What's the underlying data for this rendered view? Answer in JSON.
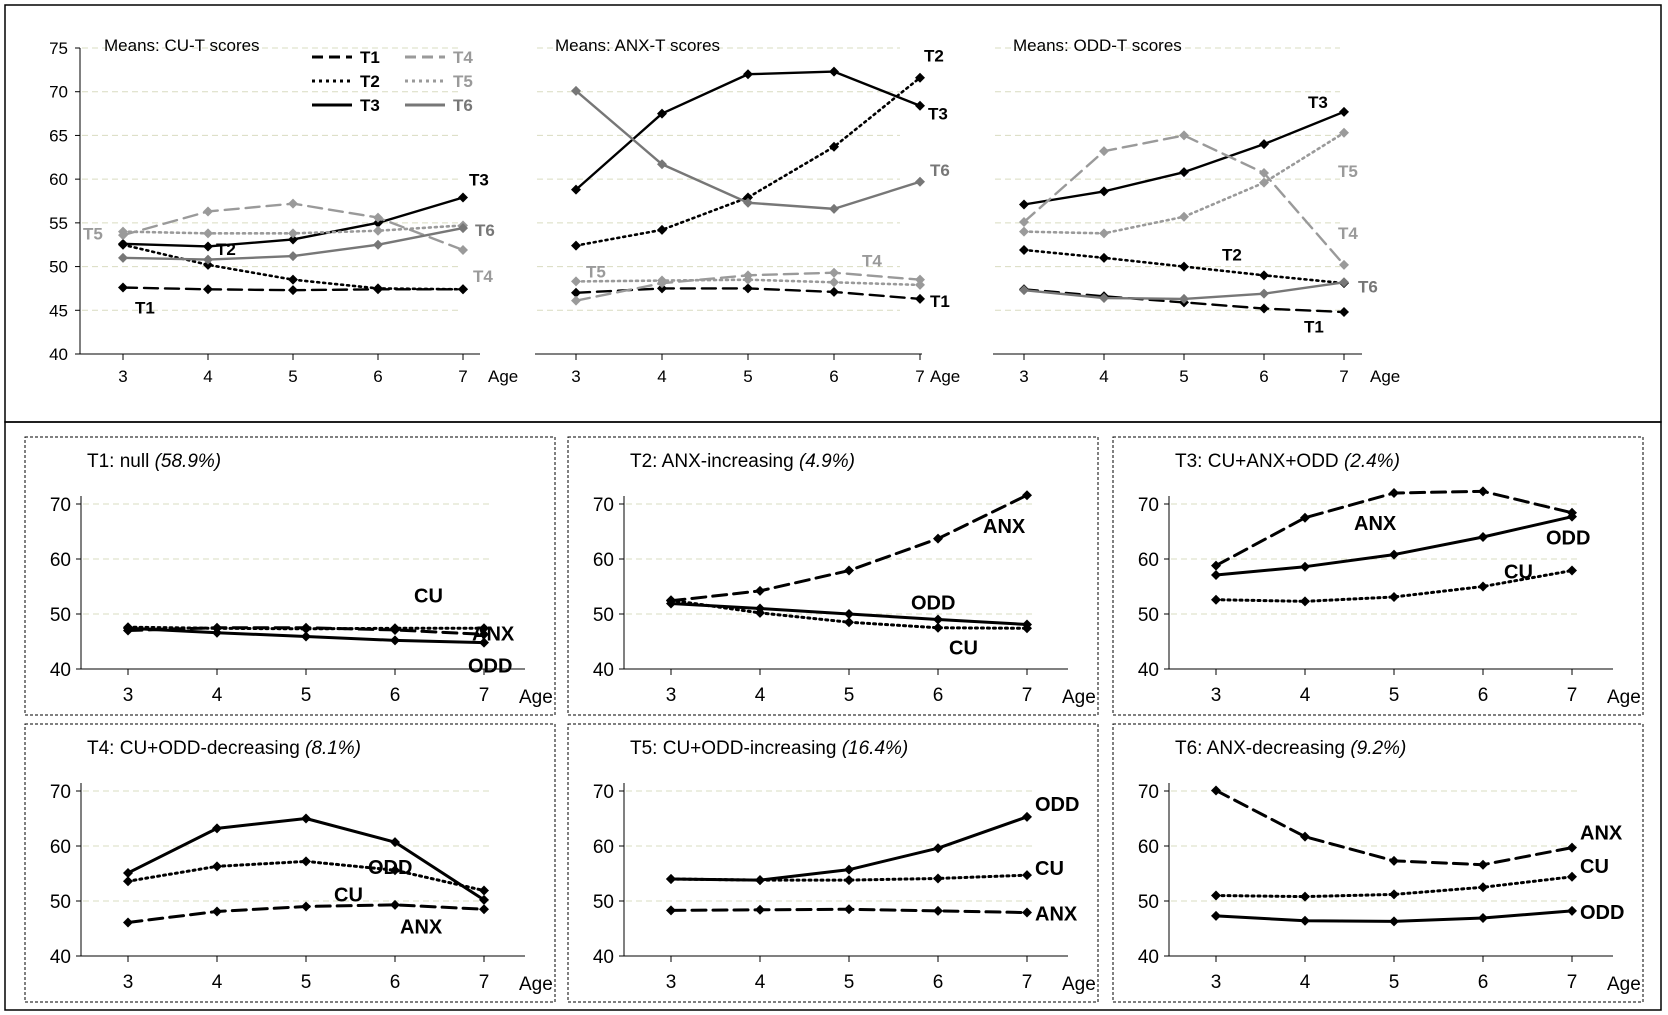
{
  "axis_label": "Age",
  "legend": [
    {
      "label": "T1",
      "style": "dash",
      "color": "#000000"
    },
    {
      "label": "T2",
      "style": "dot",
      "color": "#000000"
    },
    {
      "label": "T3",
      "style": "solid",
      "color": "#000000"
    },
    {
      "label": "T4",
      "style": "dash",
      "color": "#9a9a9a"
    },
    {
      "label": "T5",
      "style": "dot",
      "color": "#9a9a9a"
    },
    {
      "label": "T6",
      "style": "solid",
      "color": "#777777"
    }
  ],
  "chart_data": [
    {
      "type": "line",
      "title": "Means: CU-T scores",
      "x": [
        3,
        4,
        5,
        6,
        7
      ],
      "xlabel": "Age",
      "ylim": [
        40,
        75
      ],
      "yticks": [
        40,
        45,
        50,
        55,
        60,
        65,
        70,
        75
      ],
      "grid": true,
      "legend_position": "top-center",
      "series": [
        {
          "name": "T1",
          "values": [
            47.6,
            47.4,
            47.3,
            47.4,
            47.4
          ],
          "color": "#000000",
          "style": "dash",
          "end_label": "T1"
        },
        {
          "name": "T2",
          "values": [
            52.5,
            50.2,
            48.5,
            47.5,
            47.4
          ],
          "color": "#000000",
          "style": "dot",
          "end_label": "T2"
        },
        {
          "name": "T3",
          "values": [
            52.6,
            52.3,
            53.1,
            55.0,
            57.9
          ],
          "color": "#000000",
          "style": "solid",
          "end_label": "T3"
        },
        {
          "name": "T4",
          "values": [
            53.6,
            56.3,
            57.2,
            55.6,
            51.9
          ],
          "color": "#9a9a9a",
          "style": "dash",
          "end_label": "T4"
        },
        {
          "name": "T5",
          "values": [
            54.0,
            53.8,
            53.8,
            54.1,
            54.7
          ],
          "color": "#9a9a9a",
          "style": "dot",
          "end_label": "T5"
        },
        {
          "name": "T6",
          "values": [
            51.0,
            50.8,
            51.2,
            52.5,
            54.4
          ],
          "color": "#777777",
          "style": "solid",
          "end_label": "T6"
        }
      ]
    },
    {
      "type": "line",
      "title": "Means: ANX-T scores",
      "x": [
        3,
        4,
        5,
        6,
        7
      ],
      "xlabel": "Age",
      "ylim": [
        40,
        75
      ],
      "grid": true,
      "series": [
        {
          "name": "T1",
          "values": [
            47.0,
            47.5,
            47.5,
            47.1,
            46.3
          ],
          "color": "#000000",
          "style": "dash",
          "end_label": "T1"
        },
        {
          "name": "T2",
          "values": [
            52.4,
            54.2,
            57.9,
            63.7,
            71.6
          ],
          "color": "#000000",
          "style": "dot",
          "end_label": "T2"
        },
        {
          "name": "T3",
          "values": [
            58.8,
            67.5,
            72.0,
            72.3,
            68.4
          ],
          "color": "#000000",
          "style": "solid",
          "end_label": "T3"
        },
        {
          "name": "T4",
          "values": [
            46.1,
            48.1,
            49.0,
            49.3,
            48.5
          ],
          "color": "#9a9a9a",
          "style": "dash",
          "end_label": "T4"
        },
        {
          "name": "T5",
          "values": [
            48.3,
            48.4,
            48.5,
            48.2,
            47.9
          ],
          "color": "#9a9a9a",
          "style": "dot",
          "end_label": "T5"
        },
        {
          "name": "T6",
          "values": [
            70.1,
            61.7,
            57.3,
            56.6,
            59.7
          ],
          "color": "#777777",
          "style": "solid",
          "end_label": "T6"
        }
      ]
    },
    {
      "type": "line",
      "title": "Means: ODD-T scores",
      "x": [
        3,
        4,
        5,
        6,
        7
      ],
      "xlabel": "Age",
      "ylim": [
        40,
        75
      ],
      "grid": true,
      "series": [
        {
          "name": "T1",
          "values": [
            47.4,
            46.6,
            45.9,
            45.2,
            44.8
          ],
          "color": "#000000",
          "style": "dash",
          "end_label": "T1"
        },
        {
          "name": "T2",
          "values": [
            51.9,
            51.0,
            50.0,
            49.0,
            48.1
          ],
          "color": "#000000",
          "style": "dot",
          "end_label": "T2"
        },
        {
          "name": "T3",
          "values": [
            57.1,
            58.6,
            60.8,
            64.0,
            67.7
          ],
          "color": "#000000",
          "style": "solid",
          "end_label": "T3"
        },
        {
          "name": "T4",
          "values": [
            55.1,
            63.2,
            65.0,
            60.7,
            50.2
          ],
          "color": "#9a9a9a",
          "style": "dash",
          "end_label": "T4"
        },
        {
          "name": "T5",
          "values": [
            54.0,
            53.8,
            55.7,
            59.6,
            65.3
          ],
          "color": "#9a9a9a",
          "style": "dot",
          "end_label": "T5"
        },
        {
          "name": "T6",
          "values": [
            47.3,
            46.4,
            46.3,
            46.9,
            48.2
          ],
          "color": "#777777",
          "style": "solid",
          "end_label": "T6"
        }
      ]
    },
    {
      "type": "line",
      "title": "T1: null",
      "pct": "(58.9%)",
      "x": [
        3,
        4,
        5,
        6,
        7
      ],
      "xlabel": "Age",
      "ylim": [
        40,
        75
      ],
      "yticks": [
        40,
        50,
        60,
        70
      ],
      "grid": true,
      "series": [
        {
          "name": "CU",
          "values": [
            47.6,
            47.4,
            47.3,
            47.4,
            47.4
          ],
          "color": "#000000",
          "style": "dot",
          "end_label": "CU"
        },
        {
          "name": "ANX",
          "values": [
            47.0,
            47.5,
            47.5,
            47.1,
            46.3
          ],
          "color": "#000000",
          "style": "dash",
          "end_label": "ANX"
        },
        {
          "name": "ODD",
          "values": [
            47.4,
            46.6,
            45.9,
            45.2,
            44.8
          ],
          "color": "#000000",
          "style": "solid",
          "end_label": "ODD"
        }
      ]
    },
    {
      "type": "line",
      "title": "T2: ANX-increasing",
      "pct": "(4.9%)",
      "x": [
        3,
        4,
        5,
        6,
        7
      ],
      "xlabel": "Age",
      "ylim": [
        40,
        75
      ],
      "grid": true,
      "series": [
        {
          "name": "ANX",
          "values": [
            52.4,
            54.2,
            57.9,
            63.7,
            71.6
          ],
          "color": "#000000",
          "style": "dash",
          "end_label": "ANX"
        },
        {
          "name": "ODD",
          "values": [
            51.9,
            51.0,
            50.0,
            49.0,
            48.1
          ],
          "color": "#000000",
          "style": "solid",
          "end_label": "ODD"
        },
        {
          "name": "CU",
          "values": [
            52.5,
            50.2,
            48.5,
            47.5,
            47.4
          ],
          "color": "#000000",
          "style": "dot",
          "end_label": "CU"
        }
      ]
    },
    {
      "type": "line",
      "title": "T3: CU+ANX+ODD",
      "pct": "(2.4%)",
      "x": [
        3,
        4,
        5,
        6,
        7
      ],
      "xlabel": "Age",
      "ylim": [
        40,
        75
      ],
      "grid": true,
      "series": [
        {
          "name": "ANX",
          "values": [
            58.8,
            67.5,
            72.0,
            72.3,
            68.4
          ],
          "color": "#000000",
          "style": "dash",
          "end_label": "ANX"
        },
        {
          "name": "ODD",
          "values": [
            57.1,
            58.6,
            60.8,
            64.0,
            67.7
          ],
          "color": "#000000",
          "style": "solid",
          "end_label": "ODD"
        },
        {
          "name": "CU",
          "values": [
            52.6,
            52.3,
            53.1,
            55.0,
            57.9
          ],
          "color": "#000000",
          "style": "dot",
          "end_label": "CU"
        }
      ]
    },
    {
      "type": "line",
      "title": "T4: CU+ODD-decreasing",
      "pct": "(8.1%)",
      "x": [
        3,
        4,
        5,
        6,
        7
      ],
      "xlabel": "Age",
      "ylim": [
        40,
        75
      ],
      "grid": true,
      "series": [
        {
          "name": "ODD",
          "values": [
            55.1,
            63.2,
            65.0,
            60.7,
            50.2
          ],
          "color": "#000000",
          "style": "solid",
          "end_label": "ODD"
        },
        {
          "name": "CU",
          "values": [
            53.6,
            56.3,
            57.2,
            55.6,
            51.9
          ],
          "color": "#000000",
          "style": "dot",
          "end_label": "CU"
        },
        {
          "name": "ANX",
          "values": [
            46.1,
            48.1,
            49.0,
            49.3,
            48.5
          ],
          "color": "#000000",
          "style": "dash",
          "end_label": "ANX"
        }
      ]
    },
    {
      "type": "line",
      "title": "T5: CU+ODD-increasing",
      "pct": "(16.4%)",
      "x": [
        3,
        4,
        5,
        6,
        7
      ],
      "xlabel": "Age",
      "ylim": [
        40,
        75
      ],
      "grid": true,
      "series": [
        {
          "name": "ODD",
          "values": [
            54.0,
            53.8,
            55.7,
            59.6,
            65.3
          ],
          "color": "#000000",
          "style": "solid",
          "end_label": "ODD"
        },
        {
          "name": "CU",
          "values": [
            54.0,
            53.8,
            53.8,
            54.1,
            54.7
          ],
          "color": "#000000",
          "style": "dot",
          "end_label": "CU"
        },
        {
          "name": "ANX",
          "values": [
            48.3,
            48.4,
            48.5,
            48.2,
            47.9
          ],
          "color": "#000000",
          "style": "dash",
          "end_label": "ANX"
        }
      ]
    },
    {
      "type": "line",
      "title": "T6: ANX-decreasing",
      "pct": "(9.2%)",
      "x": [
        3,
        4,
        5,
        6,
        7
      ],
      "xlabel": "Age",
      "ylim": [
        40,
        75
      ],
      "grid": true,
      "series": [
        {
          "name": "ANX",
          "values": [
            70.1,
            61.7,
            57.3,
            56.6,
            59.7
          ],
          "color": "#000000",
          "style": "dash",
          "end_label": "ANX"
        },
        {
          "name": "CU",
          "values": [
            51.0,
            50.8,
            51.2,
            52.5,
            54.4
          ],
          "color": "#000000",
          "style": "dot",
          "end_label": "CU"
        },
        {
          "name": "ODD",
          "values": [
            47.3,
            46.4,
            46.3,
            46.9,
            48.2
          ],
          "color": "#000000",
          "style": "solid",
          "end_label": "ODD"
        }
      ]
    }
  ]
}
